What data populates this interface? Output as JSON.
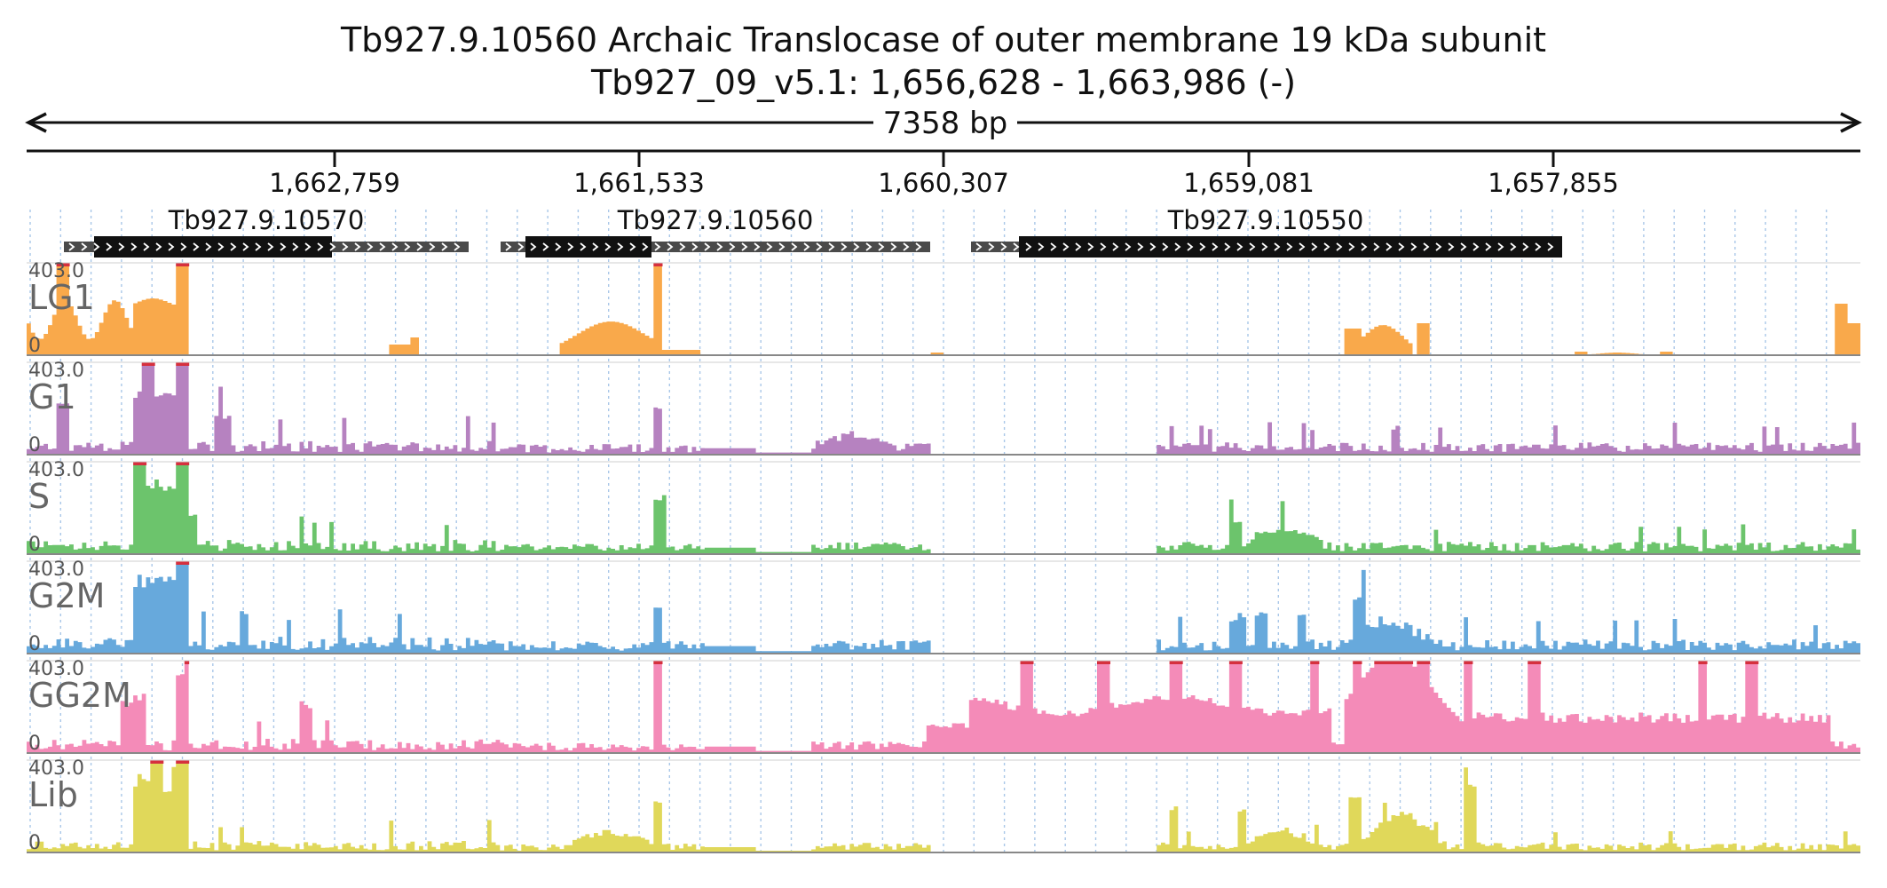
{
  "header": {
    "title": "Tb927.9.10560  Archaic Translocase of outer membrane 19 kDa subunit",
    "locus": "Tb927_09_v5.1: 1,656,628 - 1,663,986 (-)",
    "span_label": "7358 bp"
  },
  "ruler": {
    "ticks": [
      "1,662,759",
      "1,661,533",
      "1,660,307",
      "1,659,081",
      "1,657,855"
    ]
  },
  "genes": [
    {
      "name": "Tb927.9.10570"
    },
    {
      "name": "Tb927.9.10560"
    },
    {
      "name": "Tb927.9.10550"
    }
  ],
  "colors": {
    "LG1": "#f9a94b",
    "G1": "#b682c0",
    "S": "#6cc46c",
    "G2M": "#67a9dc",
    "GG2M": "#f48bb8",
    "Lib": "#e0d85a",
    "clip": "#d6303e",
    "gene_utr": "#4a4a4a",
    "gene_cds": "#111111",
    "grid": "#a9c7e8"
  },
  "tracks": [
    {
      "name": "LG1",
      "max": "403.0",
      "min": "0"
    },
    {
      "name": "G1",
      "max": "403.0",
      "min": "0"
    },
    {
      "name": "S",
      "max": "403.0",
      "min": "0"
    },
    {
      "name": "G2M",
      "max": "403.0",
      "min": "0"
    },
    {
      "name": "GG2M",
      "max": "403.0",
      "min": "0"
    },
    {
      "name": "Lib",
      "max": "403.0",
      "min": "0"
    }
  ]
}
